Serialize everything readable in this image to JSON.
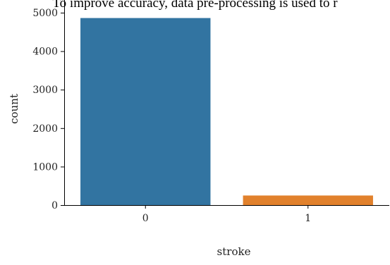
{
  "caption_fragment": "To improve accuracy, data pre-processing is used to r",
  "chart_data": {
    "type": "bar",
    "categories": [
      "0",
      "1"
    ],
    "values": [
      4861,
      249
    ],
    "colors": [
      "#3274a1",
      "#e1812c"
    ],
    "xlabel": "stroke",
    "ylabel": "count",
    "ylim": [
      0,
      5000
    ],
    "yticks": [
      0,
      1000,
      2000,
      3000,
      4000,
      5000
    ],
    "grid": false,
    "legend": "none"
  }
}
